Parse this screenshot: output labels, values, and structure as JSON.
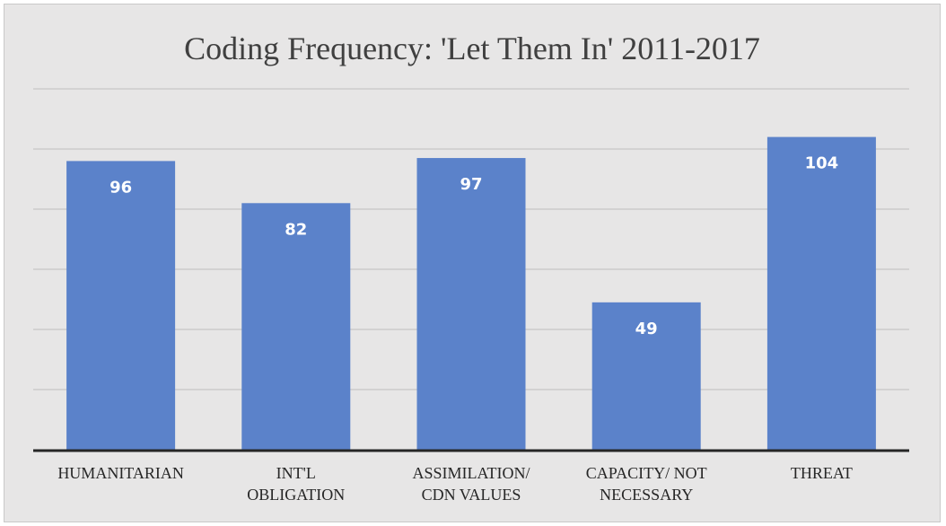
{
  "chart_data": {
    "type": "bar",
    "title": "Coding Frequency: 'Let Them In' 2011-2017",
    "categories": [
      [
        "HUMANITARIAN"
      ],
      [
        "INT'L",
        "OBLIGATION"
      ],
      [
        "ASSIMILATION/",
        "CDN VALUES"
      ],
      [
        "CAPACITY/ NOT",
        "NECESSARY"
      ],
      [
        "THREAT"
      ]
    ],
    "values": [
      96,
      82,
      97,
      49,
      104
    ],
    "ylim": [
      0,
      120
    ],
    "grid": true,
    "bar_color": "#5b82ca",
    "background_color": "#e7e6e6",
    "xlabel": "",
    "ylabel": ""
  }
}
